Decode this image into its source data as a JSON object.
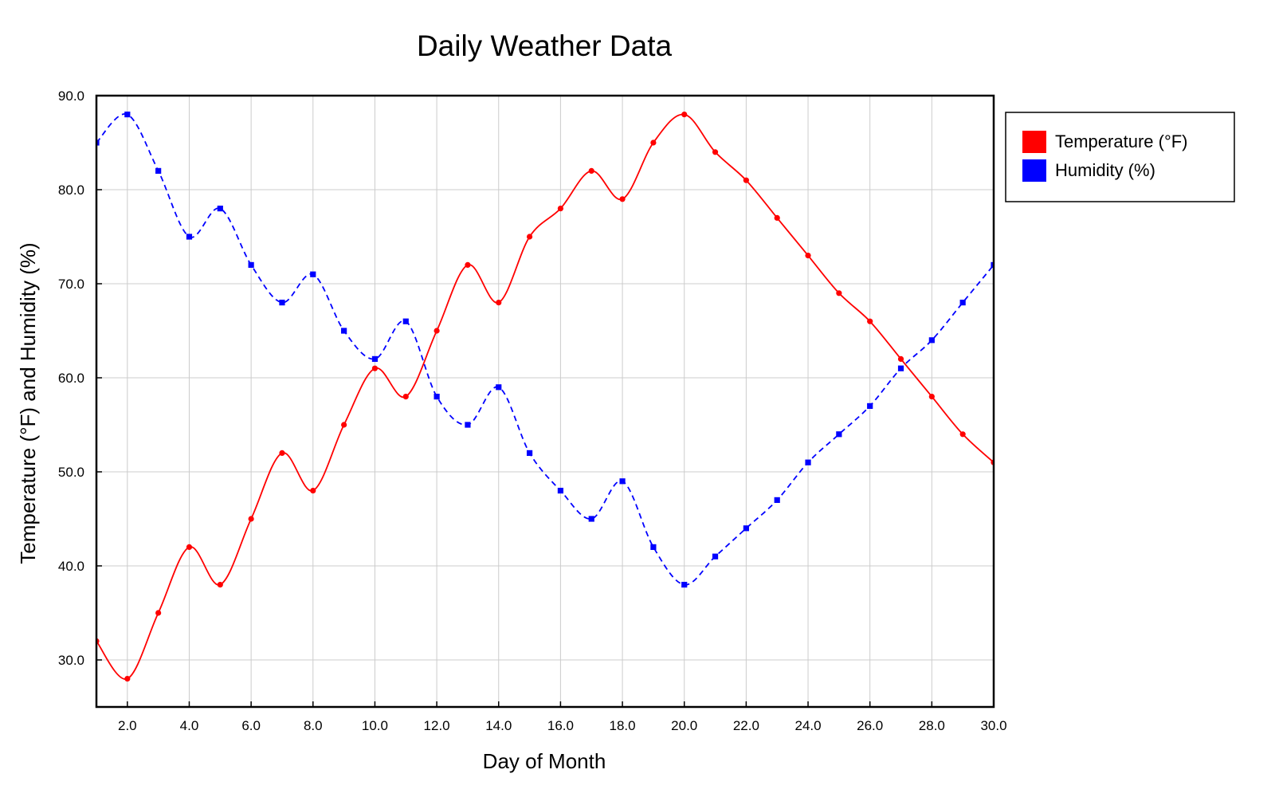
{
  "chart_data": {
    "type": "line",
    "title": "Daily Weather Data",
    "xlabel": "Day of Month",
    "ylabel": "Temperature (°F) and Humidity (%)",
    "xlim": [
      1,
      30
    ],
    "ylim": [
      25,
      90
    ],
    "x_ticks": [
      2,
      4,
      6,
      8,
      10,
      12,
      14,
      16,
      18,
      20,
      22,
      24,
      26,
      28,
      30
    ],
    "y_ticks": [
      30,
      40,
      50,
      60,
      70,
      80,
      90
    ],
    "grid": true,
    "legend_position": "right",
    "x": [
      1,
      2,
      3,
      4,
      5,
      6,
      7,
      8,
      9,
      10,
      11,
      12,
      13,
      14,
      15,
      16,
      17,
      18,
      19,
      20,
      21,
      22,
      23,
      24,
      25,
      26,
      27,
      28,
      29,
      30
    ],
    "series": [
      {
        "name": "Temperature (°F)",
        "color": "#ff0000",
        "line_style": "solid",
        "marker": "circle",
        "values": [
          32,
          28,
          35,
          42,
          38,
          45,
          52,
          48,
          55,
          61,
          58,
          65,
          72,
          68,
          75,
          78,
          82,
          79,
          85,
          88,
          84,
          81,
          77,
          73,
          69,
          66,
          62,
          58,
          54,
          51
        ]
      },
      {
        "name": "Humidity (%)",
        "color": "#0000ff",
        "line_style": "dashed",
        "marker": "square",
        "values": [
          85,
          88,
          82,
          75,
          78,
          72,
          68,
          71,
          65,
          62,
          66,
          58,
          55,
          59,
          52,
          48,
          45,
          49,
          42,
          38,
          41,
          44,
          47,
          51,
          54,
          57,
          61,
          64,
          68,
          72
        ]
      }
    ]
  }
}
